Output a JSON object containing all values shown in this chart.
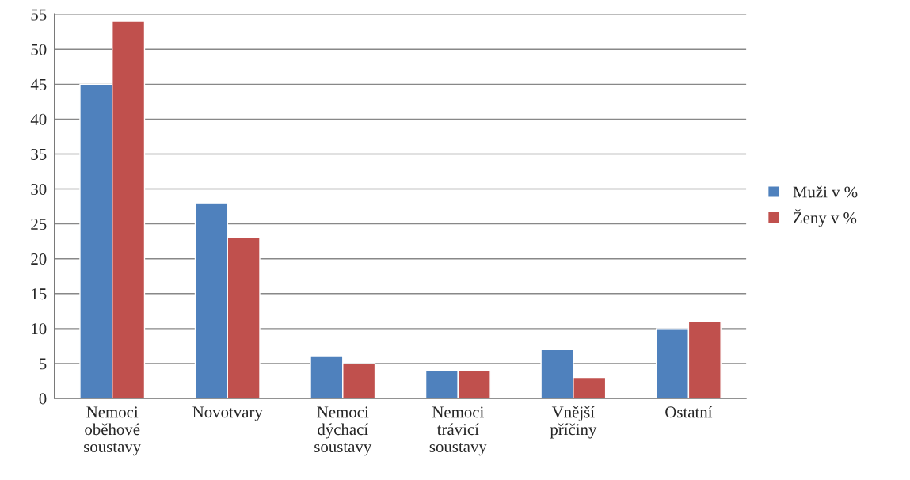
{
  "chart_data": {
    "type": "bar",
    "categories": [
      "Nemoci oběhové soustavy",
      "Novotvary",
      "Nemoci dýchací soustavy",
      "Nemoci trávicí soustavy",
      "Vnější příčiny",
      "Ostatní"
    ],
    "series": [
      {
        "name": "Muži v %",
        "color": "#4f81bd",
        "values": [
          45,
          28,
          6,
          4,
          7,
          10
        ]
      },
      {
        "name": "Ženy v %",
        "color": "#c0504d",
        "values": [
          54,
          23,
          5,
          4,
          3,
          11
        ]
      }
    ],
    "ylim": [
      0,
      55
    ],
    "yticks": [
      0,
      5,
      10,
      15,
      20,
      25,
      30,
      35,
      40,
      45,
      50,
      55
    ],
    "grid": "y",
    "legend": "right"
  }
}
